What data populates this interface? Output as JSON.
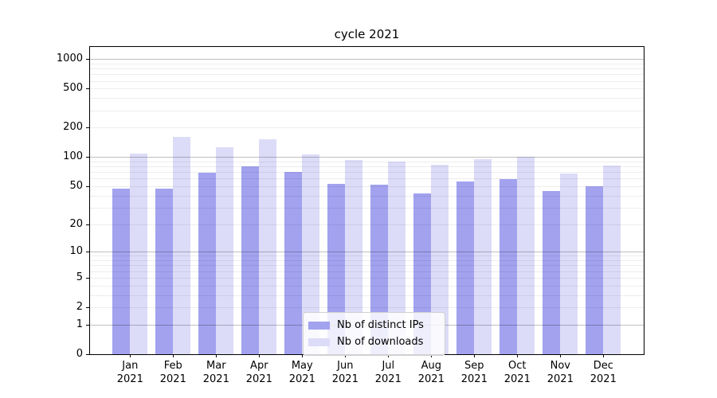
{
  "chart_data": {
    "type": "bar",
    "title": "cycle 2021",
    "xlabel": "",
    "ylabel": "",
    "categories": [
      "Jan",
      "Feb",
      "Mar",
      "Apr",
      "May",
      "Jun",
      "Jul",
      "Aug",
      "Sep",
      "Oct",
      "Nov",
      "Dec"
    ],
    "year_label": "2021",
    "series": [
      {
        "name": "Nb of distinct IPs",
        "color": "#a2a2ef",
        "values": [
          47,
          47,
          69,
          80,
          70,
          53,
          52,
          42,
          56,
          59,
          45,
          50
        ]
      },
      {
        "name": "Nb of downloads",
        "color": "#dcdcf8",
        "values": [
          108,
          160,
          127,
          152,
          107,
          93,
          90,
          84,
          96,
          101,
          68,
          82
        ]
      }
    ],
    "y_scale": "log1p",
    "y_ticks": [
      1000,
      500,
      200,
      100,
      50,
      20,
      10,
      5,
      2,
      1,
      0
    ],
    "grid_major_at": [
      1,
      10,
      100,
      1000
    ],
    "grid_minor_subs": [
      2,
      3,
      4,
      5,
      6,
      7,
      8,
      9
    ],
    "ylim": [
      0,
      1330
    ],
    "grid": true,
    "legend_position": "lower-center"
  }
}
